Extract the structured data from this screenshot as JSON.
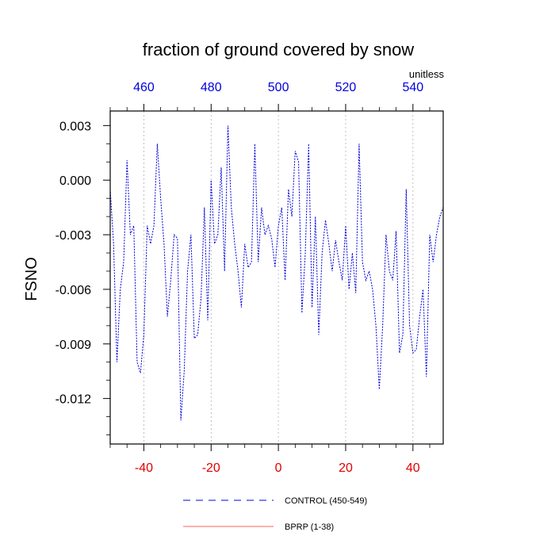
{
  "chart_data": {
    "type": "line",
    "title": "fraction of ground covered by snow",
    "ylabel": "FSNO",
    "units": "unitless",
    "xlim": [
      -50,
      49
    ],
    "ylim": [
      -0.0145,
      0.0038
    ],
    "x_ticks": [
      -40,
      -20,
      0,
      20,
      40
    ],
    "x_tick_labels": [
      "-40",
      "-20",
      "0",
      "20",
      "40"
    ],
    "top_ticks": [
      -40,
      -20,
      0,
      20,
      40
    ],
    "top_tick_labels": [
      "460",
      "480",
      "500",
      "520",
      "540"
    ],
    "y_ticks": [
      0.003,
      0.0,
      -0.003,
      -0.006,
      -0.009,
      -0.012
    ],
    "y_tick_labels": [
      "0.003",
      "0.000",
      "-0.003",
      "-0.006",
      "-0.009",
      "-0.012"
    ],
    "grid_x": true,
    "colors": {
      "control": "#0000dd",
      "bprp": "#ff6060"
    },
    "legend": [
      {
        "label": "CONTROL (450-549)",
        "style": "dashed",
        "color": "#0000dd"
      },
      {
        "label": "BPRP (1-38)",
        "style": "solid",
        "color": "#ff6060"
      }
    ],
    "series": [
      {
        "name": "CONTROL (450-549)",
        "x": [
          -50,
          -49,
          -48,
          -47,
          -46,
          -45,
          -44,
          -43,
          -42,
          -41,
          -40,
          -39,
          -38,
          -37,
          -36,
          -35,
          -34,
          -33,
          -32,
          -31,
          -30,
          -29,
          -28,
          -27,
          -26,
          -25,
          -24,
          -23,
          -22,
          -21,
          -20,
          -19,
          -18,
          -17,
          -16,
          -15,
          -14,
          -13,
          -12,
          -11,
          -10,
          -9,
          -8,
          -7,
          -6,
          -5,
          -4,
          -3,
          -2,
          -1,
          0,
          1,
          2,
          3,
          4,
          5,
          6,
          7,
          8,
          9,
          10,
          11,
          12,
          13,
          14,
          15,
          16,
          17,
          18,
          19,
          20,
          21,
          22,
          23,
          24,
          25,
          26,
          27,
          28,
          29,
          30,
          31,
          32,
          33,
          34,
          35,
          36,
          37,
          38,
          39,
          40,
          41,
          42,
          43,
          44,
          45,
          46,
          47,
          48,
          49
        ],
        "y": [
          -0.0005,
          -0.0035,
          -0.01,
          -0.006,
          -0.0045,
          0.0011,
          -0.003,
          -0.0025,
          -0.01,
          -0.0106,
          -0.0085,
          -0.0025,
          -0.0035,
          -0.0025,
          0.002,
          -0.001,
          -0.0035,
          -0.0075,
          -0.0055,
          -0.003,
          -0.0032,
          -0.0132,
          -0.0105,
          -0.005,
          -0.003,
          -0.0087,
          -0.0085,
          -0.0065,
          -0.0015,
          -0.0077,
          0.0,
          -0.0035,
          -0.003,
          0.0007,
          -0.005,
          0.003,
          -0.0015,
          -0.0035,
          -0.005,
          -0.007,
          -0.0035,
          -0.0048,
          -0.0045,
          0.002,
          -0.0045,
          -0.0015,
          -0.003,
          -0.0025,
          -0.0032,
          -0.0048,
          -0.0025,
          -0.0015,
          -0.0055,
          -0.0005,
          -0.002,
          0.0016,
          0.001,
          -0.0073,
          -0.004,
          0.002,
          -0.007,
          -0.002,
          -0.0085,
          -0.004,
          -0.0022,
          -0.0035,
          -0.005,
          -0.0033,
          -0.0045,
          -0.0055,
          -0.0025,
          -0.006,
          -0.004,
          -0.0062,
          0.002,
          -0.0045,
          -0.0055,
          -0.005,
          -0.006,
          -0.008,
          -0.0115,
          -0.008,
          -0.003,
          -0.005,
          -0.0055,
          -0.0028,
          -0.0095,
          -0.0085,
          -0.0005,
          -0.008,
          -0.0095,
          -0.0093,
          -0.0075,
          -0.006,
          -0.0108,
          -0.003,
          -0.0045,
          -0.003,
          -0.002,
          -0.0015
        ]
      },
      {
        "name": "BPRP (1-38)",
        "x": [],
        "y": []
      }
    ]
  }
}
